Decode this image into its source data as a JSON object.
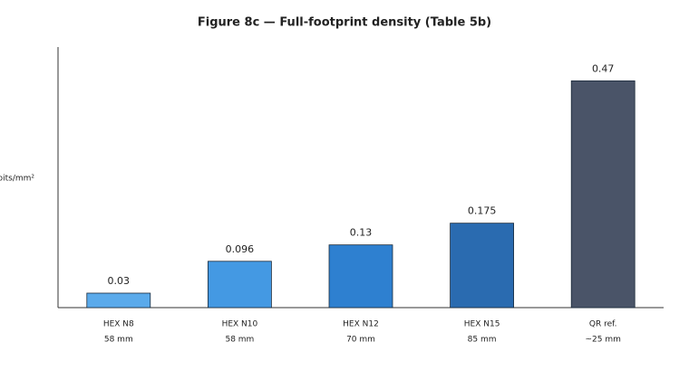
{
  "chart_data": {
    "type": "bar",
    "title": "Figure 8c — Full-footprint density (Table 5b)",
    "y_label": "bits/mm²",
    "categories": [
      [
        "HEX N8",
        "58 mm"
      ],
      [
        "HEX N10",
        "58 mm"
      ],
      [
        "HEX N12",
        "70 mm"
      ],
      [
        "HEX N15",
        "85 mm"
      ],
      [
        "QR ref.",
        "~25 mm"
      ]
    ],
    "values": [
      0.03,
      0.096,
      0.13,
      0.175,
      0.47
    ],
    "colors": [
      "#5aaaeb",
      "#4499e3",
      "#2e80d0",
      "#2a6bb0",
      "#4a5468"
    ],
    "ylim": [
      0,
      0.54
    ]
  }
}
